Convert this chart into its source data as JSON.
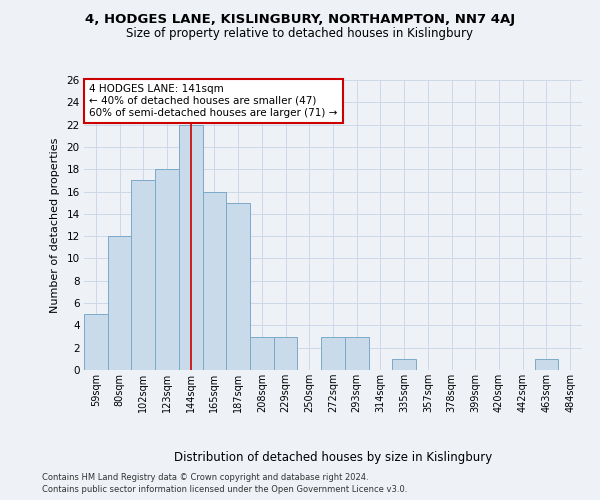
{
  "title1": "4, HODGES LANE, KISLINGBURY, NORTHAMPTON, NN7 4AJ",
  "title2": "Size of property relative to detached houses in Kislingbury",
  "xlabel": "Distribution of detached houses by size in Kislingbury",
  "ylabel": "Number of detached properties",
  "categories": [
    "59sqm",
    "80sqm",
    "102sqm",
    "123sqm",
    "144sqm",
    "165sqm",
    "187sqm",
    "208sqm",
    "229sqm",
    "250sqm",
    "272sqm",
    "293sqm",
    "314sqm",
    "335sqm",
    "357sqm",
    "378sqm",
    "399sqm",
    "420sqm",
    "442sqm",
    "463sqm",
    "484sqm"
  ],
  "values": [
    5,
    12,
    17,
    18,
    22,
    16,
    15,
    3,
    3,
    0,
    3,
    3,
    0,
    1,
    0,
    0,
    0,
    0,
    0,
    1,
    0
  ],
  "bar_color": "#c9daea",
  "bar_edge_color": "#7aaac8",
  "property_line_x": 4,
  "annotation_line1": "4 HODGES LANE: 141sqm",
  "annotation_line2": "← 40% of detached houses are smaller (47)",
  "annotation_line3": "60% of semi-detached houses are larger (71) →",
  "ylim": [
    0,
    26
  ],
  "yticks": [
    0,
    2,
    4,
    6,
    8,
    10,
    12,
    14,
    16,
    18,
    20,
    22,
    24,
    26
  ],
  "grid_color": "#ccd8e8",
  "footer1": "Contains HM Land Registry data © Crown copyright and database right 2024.",
  "footer2": "Contains public sector information licensed under the Open Government Licence v3.0.",
  "bg_color": "#eef2f7",
  "plot_bg_color": "#eef2f7"
}
